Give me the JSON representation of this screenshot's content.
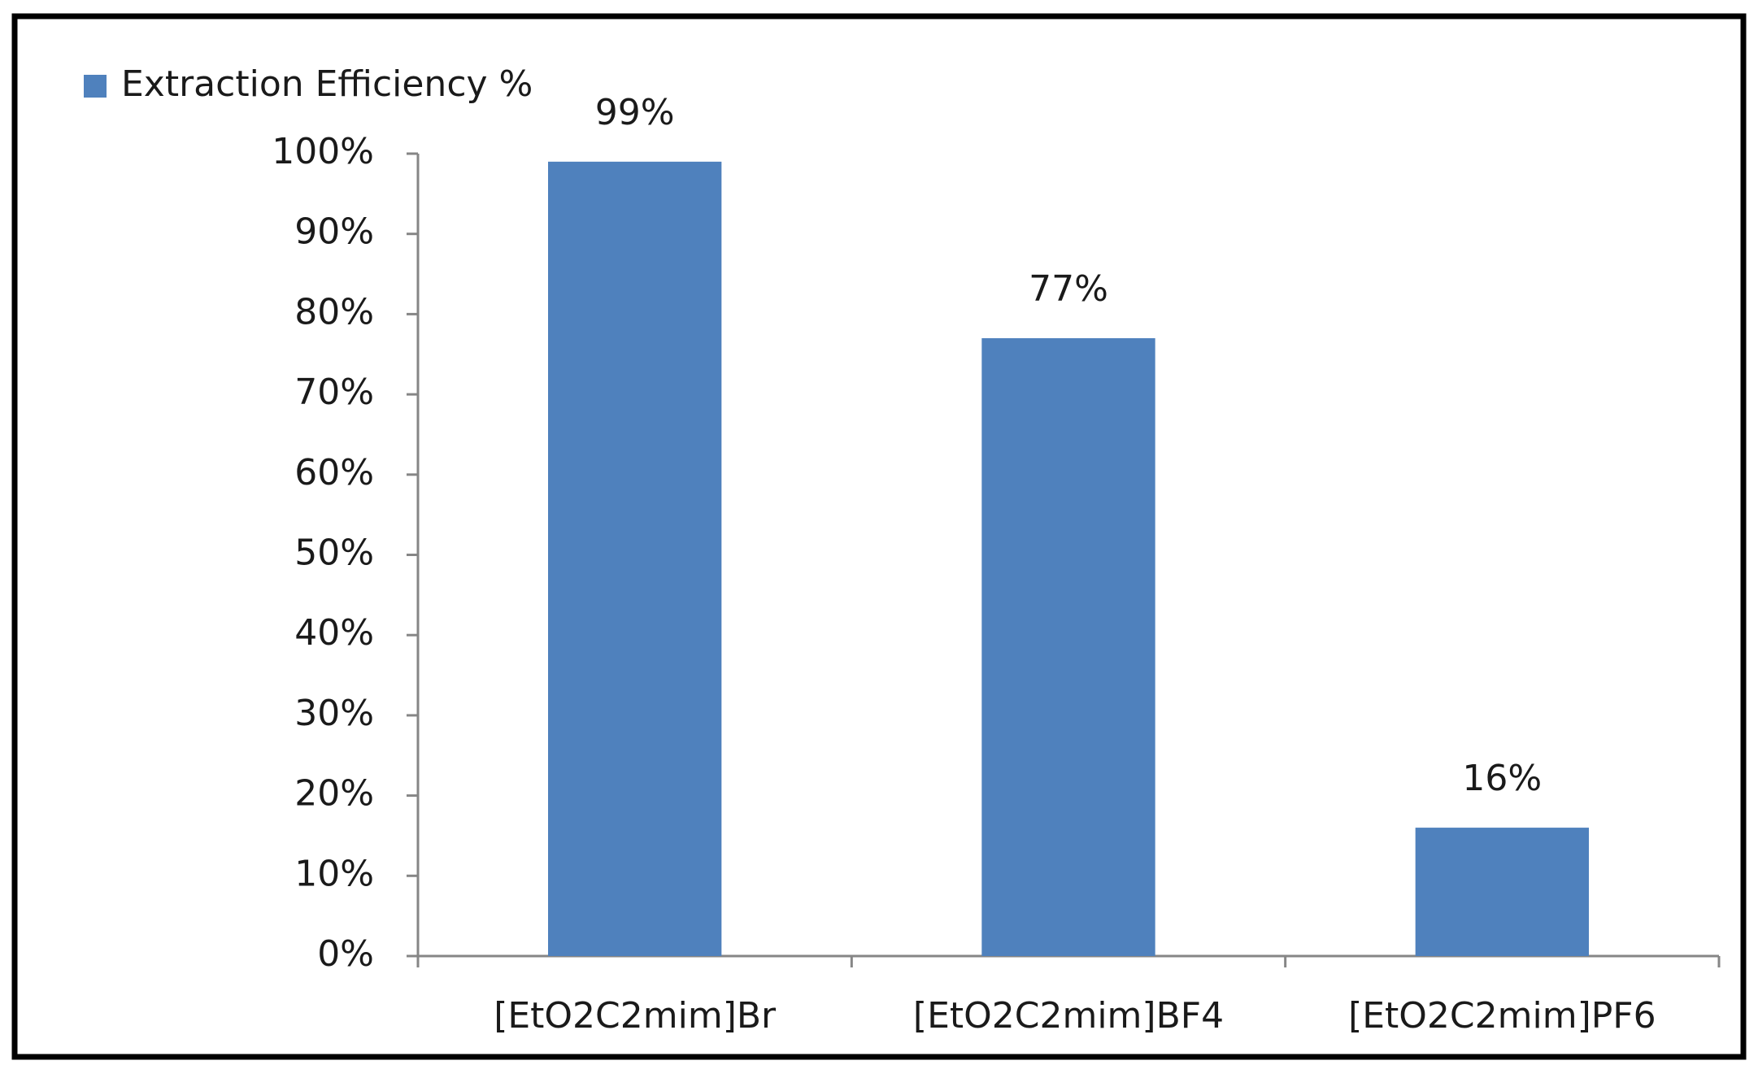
{
  "chart_data": {
    "type": "bar",
    "categories": [
      "[EtO2C2mim]Br",
      "[EtO2C2mim]BF4",
      "[EtO2C2mim]PF6"
    ],
    "series": [
      {
        "name": "Extraction Efficiency %",
        "color": "#4f81bd",
        "values": [
          99,
          77,
          16
        ],
        "value_labels": [
          "99%",
          "77%",
          "16%"
        ]
      }
    ],
    "ylim": [
      0,
      100
    ],
    "yticks": [
      {
        "value": 0,
        "label": "0%"
      },
      {
        "value": 10,
        "label": "10%"
      },
      {
        "value": 20,
        "label": "20%"
      },
      {
        "value": 30,
        "label": "30%"
      },
      {
        "value": 40,
        "label": "40%"
      },
      {
        "value": 50,
        "label": "50%"
      },
      {
        "value": 60,
        "label": "60%"
      },
      {
        "value": 70,
        "label": "70%"
      },
      {
        "value": 80,
        "label": "80%"
      },
      {
        "value": 90,
        "label": "90%"
      },
      {
        "value": 100,
        "label": "100%"
      }
    ],
    "grid": false,
    "legend": "top-left"
  }
}
